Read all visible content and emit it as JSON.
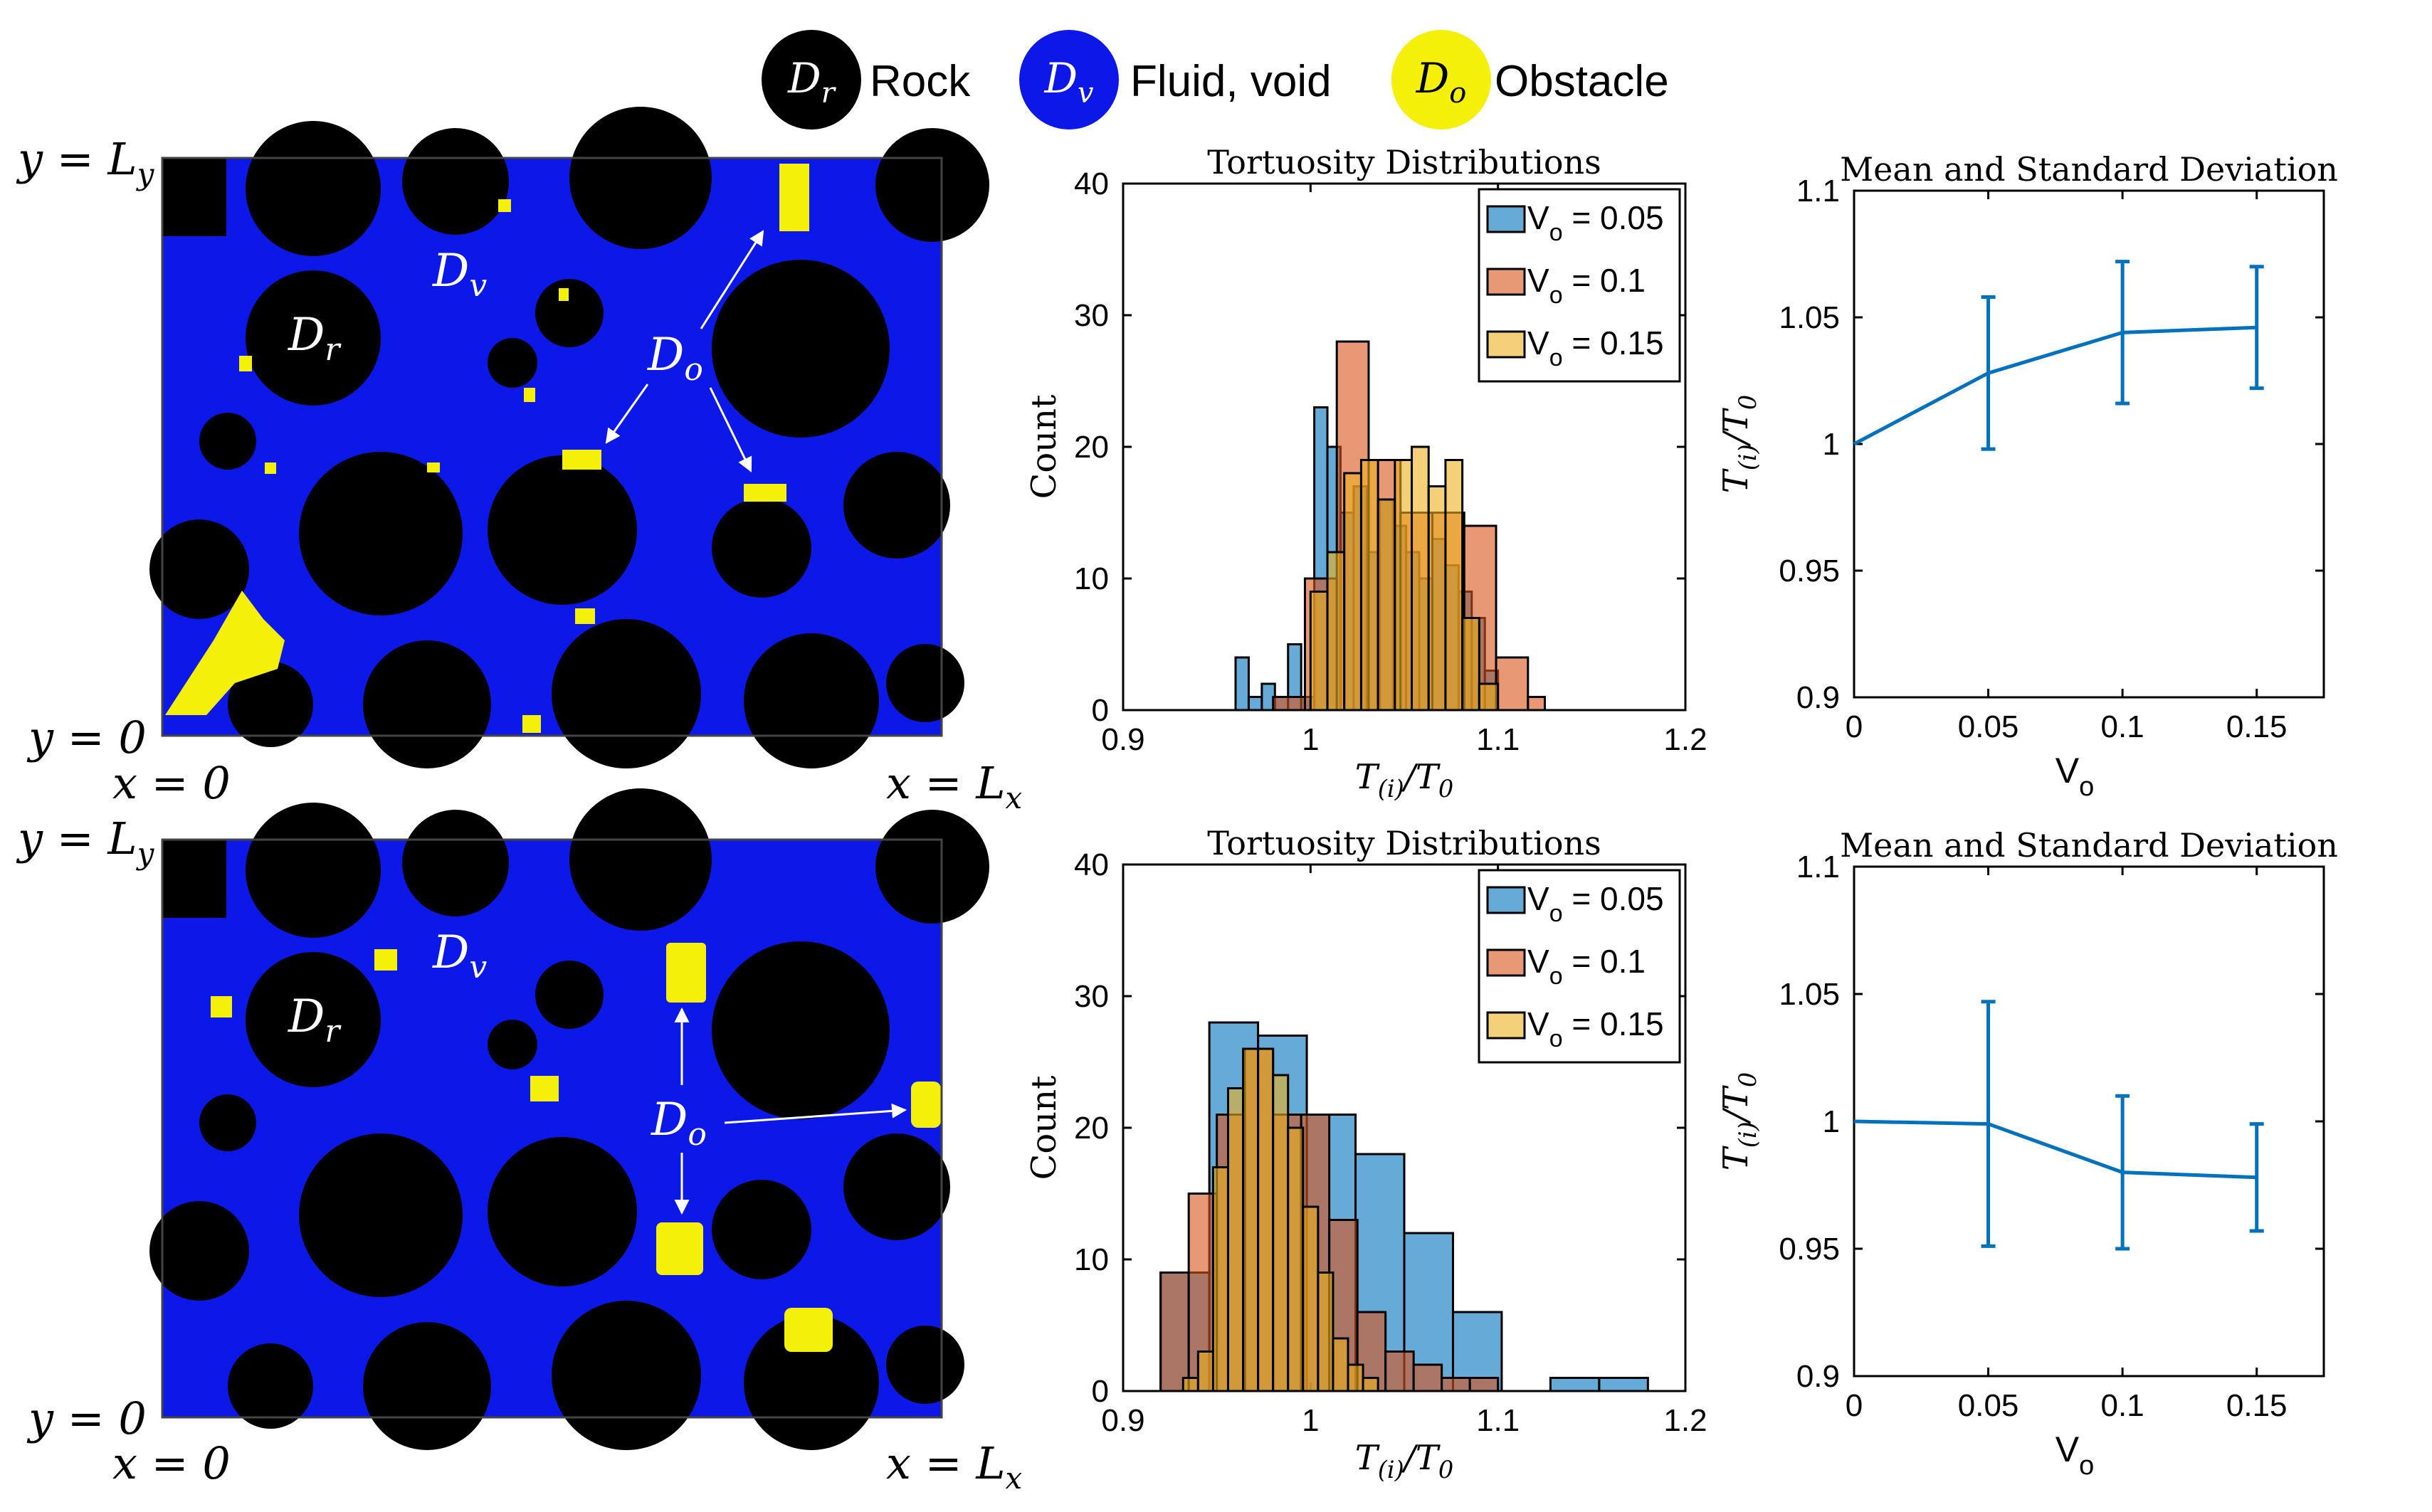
{
  "legend": {
    "items": [
      {
        "symbol": "D",
        "sub": "r",
        "label": "Rock",
        "color": "#000000"
      },
      {
        "symbol": "D",
        "sub": "v",
        "label": "Fluid, void",
        "color": "#0b18e8"
      },
      {
        "symbol": "D",
        "sub": "o",
        "label": "Obstacle",
        "color": "#f5f00a"
      }
    ]
  },
  "domain_labels": {
    "y_top": "y = L",
    "y_top_sub": "y",
    "y_bottom": "y = 0",
    "x_left": "x = 0",
    "x_right": "x = L",
    "x_right_sub": "x",
    "dr": "D",
    "dr_sub": "r",
    "dv": "D",
    "dv_sub": "v",
    "do": "D",
    "do_sub": "o"
  },
  "colors": {
    "rock": "#000000",
    "void": "#0b18e8",
    "obstacle": "#f5f00a",
    "series_blue": "#0072bd",
    "series_orange": "#d95319",
    "series_yellow": "#edb120",
    "line": "#0072bd"
  },
  "chart_data": [
    {
      "type": "histogram",
      "title": "Tortuosity Distributions",
      "xlabel": "T(i)/T0",
      "ylabel": "Count",
      "xlim": [
        0.9,
        1.2
      ],
      "ylim": [
        0,
        40
      ],
      "xticks": [
        "0.9",
        "1",
        "1.1",
        "1.2"
      ],
      "yticks": [
        "0",
        "10",
        "20",
        "30",
        "40"
      ],
      "series": [
        {
          "name": "V_o = 0.05",
          "name_main": "V",
          "name_sub": "o",
          "name_rest": " = 0.05",
          "bins": [
            [
              0.96,
              0.967,
              4
            ],
            [
              0.967,
              0.974,
              1
            ],
            [
              0.974,
              0.981,
              2
            ],
            [
              0.981,
              0.988,
              1
            ],
            [
              0.988,
              0.995,
              5
            ],
            [
              0.995,
              1.002,
              1
            ],
            [
              1.002,
              1.009,
              23
            ],
            [
              1.009,
              1.016,
              20
            ],
            [
              1.016,
              1.023,
              15
            ],
            [
              1.023,
              1.03,
              17
            ],
            [
              1.03,
              1.037,
              12
            ],
            [
              1.037,
              1.044,
              16
            ],
            [
              1.044,
              1.051,
              14
            ],
            [
              1.051,
              1.058,
              12
            ],
            [
              1.058,
              1.065,
              10
            ],
            [
              1.065,
              1.072,
              13
            ],
            [
              1.072,
              1.079,
              11
            ],
            [
              1.079,
              1.086,
              9
            ],
            [
              1.086,
              1.093,
              7
            ],
            [
              1.093,
              1.1,
              3
            ]
          ]
        },
        {
          "name": "V_o = 0.1",
          "name_main": "V",
          "name_sub": "o",
          "name_rest": " = 0.1",
          "bins": [
            [
              0.98,
              0.997,
              1
            ],
            [
              0.997,
              1.014,
              10
            ],
            [
              1.014,
              1.031,
              28
            ],
            [
              1.031,
              1.048,
              19
            ],
            [
              1.048,
              1.065,
              15
            ],
            [
              1.065,
              1.082,
              15
            ],
            [
              1.082,
              1.099,
              14
            ],
            [
              1.099,
              1.116,
              4
            ],
            [
              1.116,
              1.125,
              1
            ]
          ]
        },
        {
          "name": "V_o = 0.15",
          "name_main": "V",
          "name_sub": "o",
          "name_rest": " = 0.15",
          "bins": [
            [
              1.0,
              1.009,
              9
            ],
            [
              1.009,
              1.018,
              12
            ],
            [
              1.018,
              1.027,
              18
            ],
            [
              1.027,
              1.036,
              19
            ],
            [
              1.036,
              1.045,
              16
            ],
            [
              1.045,
              1.054,
              19
            ],
            [
              1.054,
              1.063,
              20
            ],
            [
              1.063,
              1.072,
              17
            ],
            [
              1.072,
              1.081,
              19
            ],
            [
              1.081,
              1.09,
              7
            ],
            [
              1.09,
              1.1,
              2
            ]
          ]
        }
      ]
    },
    {
      "type": "line",
      "title": "Mean and Standard Deviation",
      "xlabel": "V",
      "xlabel_sub": "o",
      "ylabel": "T(i)/T0",
      "xlim": [
        0,
        0.175
      ],
      "ylim": [
        0.9,
        1.1
      ],
      "xticks": [
        "0",
        "0.05",
        "0.1",
        "0.15"
      ],
      "yticks": [
        "0.9",
        "0.95",
        "1",
        "1.05",
        "1.1"
      ],
      "x": [
        0,
        0.05,
        0.1,
        0.15
      ],
      "y": [
        1.0,
        1.028,
        1.044,
        1.046
      ],
      "err": [
        0,
        0.03,
        0.028,
        0.024
      ]
    },
    {
      "type": "histogram",
      "title": "Tortuosity Distributions",
      "xlabel": "T(i)/T0",
      "ylabel": "Count",
      "xlim": [
        0.9,
        1.2
      ],
      "ylim": [
        0,
        40
      ],
      "xticks": [
        "0.9",
        "1",
        "1.1",
        "1.2"
      ],
      "yticks": [
        "0",
        "10",
        "20",
        "30",
        "40"
      ],
      "series": [
        {
          "name": "V_o = 0.05",
          "name_main": "V",
          "name_sub": "o",
          "name_rest": " = 0.05",
          "bins": [
            [
              0.92,
              0.946,
              9
            ],
            [
              0.946,
              0.972,
              28
            ],
            [
              0.972,
              0.998,
              27
            ],
            [
              0.998,
              1.024,
              21
            ],
            [
              1.024,
              1.05,
              18
            ],
            [
              1.05,
              1.076,
              12
            ],
            [
              1.076,
              1.102,
              6
            ],
            [
              1.102,
              1.128,
              0
            ],
            [
              1.128,
              1.154,
              1
            ],
            [
              1.154,
              1.18,
              1
            ]
          ]
        },
        {
          "name": "V_o = 0.1",
          "name_main": "V",
          "name_sub": "o",
          "name_rest": " = 0.1",
          "bins": [
            [
              0.92,
              0.935,
              9
            ],
            [
              0.935,
              0.95,
              15
            ],
            [
              0.95,
              0.965,
              21
            ],
            [
              0.965,
              0.98,
              26
            ],
            [
              0.98,
              0.995,
              21
            ],
            [
              0.995,
              1.01,
              21
            ],
            [
              1.01,
              1.025,
              13
            ],
            [
              1.025,
              1.04,
              6
            ],
            [
              1.04,
              1.055,
              3
            ],
            [
              1.055,
              1.07,
              2
            ],
            [
              1.07,
              1.085,
              1
            ],
            [
              1.085,
              1.1,
              1
            ]
          ]
        },
        {
          "name": "V_o = 0.15",
          "name_main": "V",
          "name_sub": "o",
          "name_rest": " = 0.15",
          "bins": [
            [
              0.932,
              0.94,
              1
            ],
            [
              0.94,
              0.948,
              3
            ],
            [
              0.948,
              0.956,
              17
            ],
            [
              0.956,
              0.964,
              23
            ],
            [
              0.964,
              0.972,
              26
            ],
            [
              0.972,
              0.98,
              26
            ],
            [
              0.98,
              0.988,
              24
            ],
            [
              0.988,
              0.996,
              20
            ],
            [
              0.996,
              1.004,
              14
            ],
            [
              1.004,
              1.012,
              9
            ],
            [
              1.012,
              1.02,
              4
            ],
            [
              1.02,
              1.028,
              2
            ],
            [
              1.028,
              1.036,
              1
            ]
          ]
        }
      ]
    },
    {
      "type": "line",
      "title": "Mean and Standard Deviation",
      "xlabel": "V",
      "xlabel_sub": "o",
      "ylabel": "T(i)/T0",
      "xlim": [
        0,
        0.175
      ],
      "ylim": [
        0.9,
        1.1
      ],
      "xticks": [
        "0",
        "0.05",
        "0.1",
        "0.15"
      ],
      "yticks": [
        "0.9",
        "0.95",
        "1",
        "1.05",
        "1.1"
      ],
      "x": [
        0,
        0.05,
        0.1,
        0.15
      ],
      "y": [
        1.0,
        0.999,
        0.98,
        0.978
      ],
      "err": [
        0,
        0.048,
        0.03,
        0.021
      ]
    }
  ]
}
